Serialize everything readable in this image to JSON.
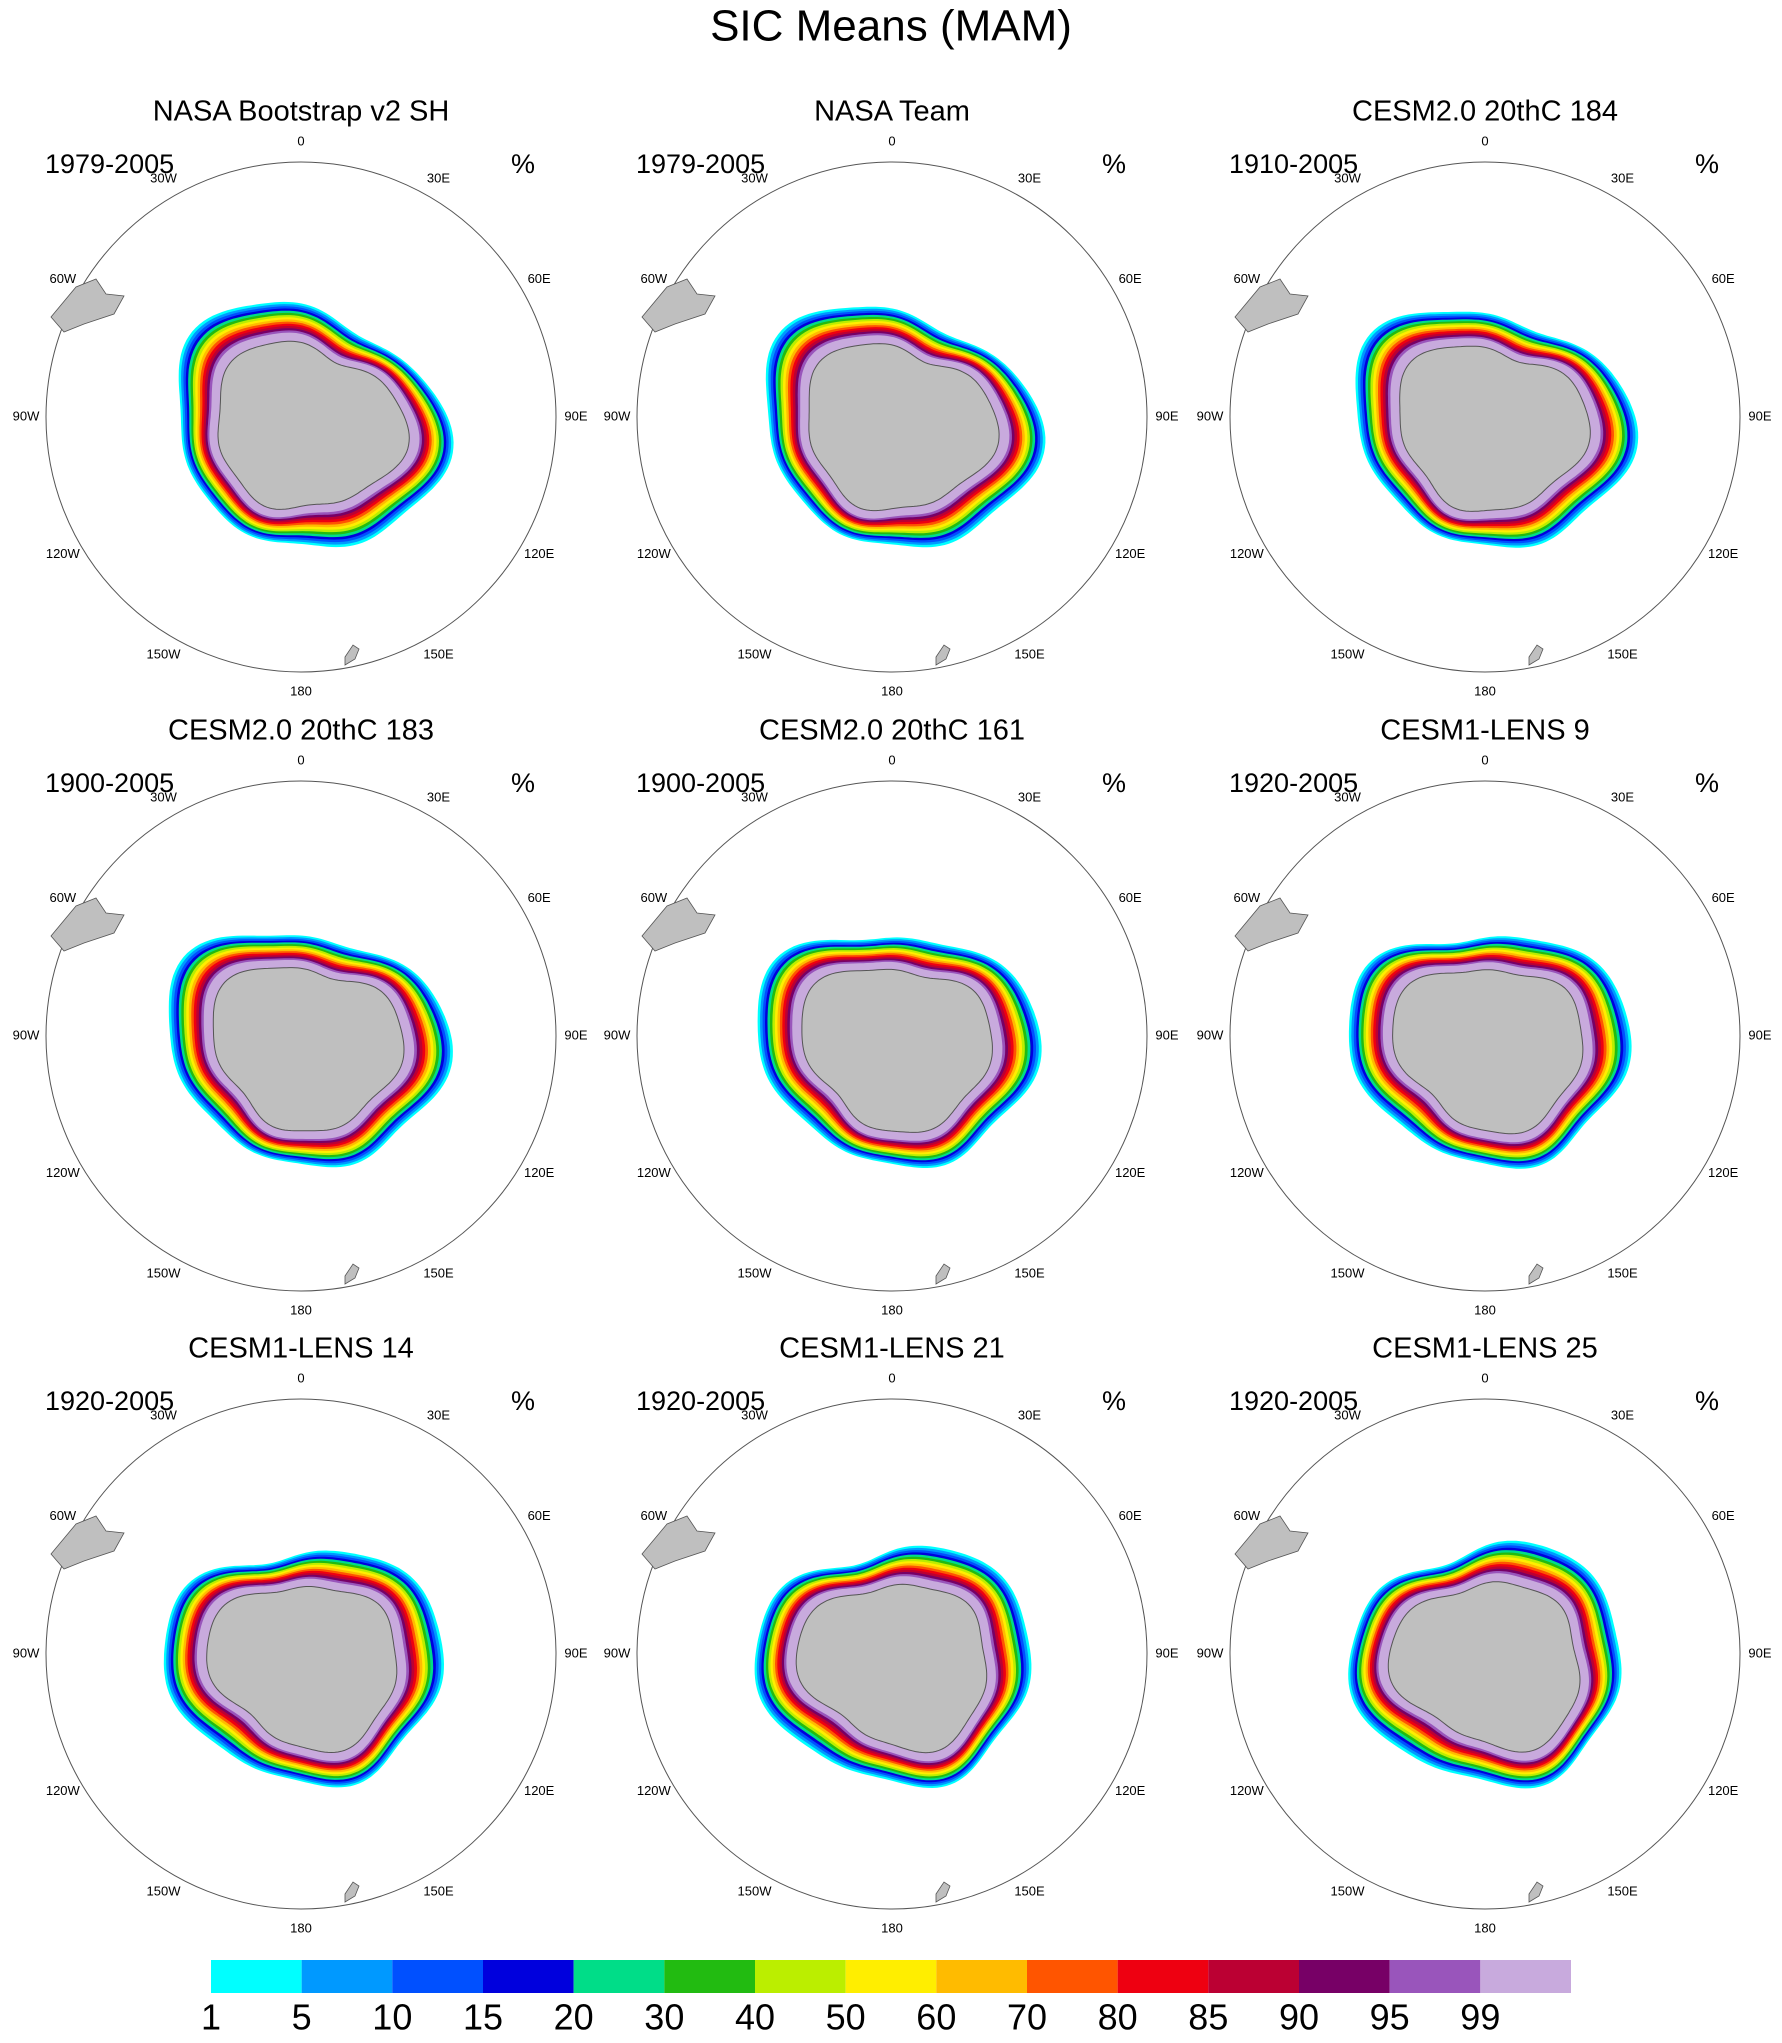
{
  "title": "SIC Means (MAM)",
  "panels": [
    {
      "title": "NASA Bootstrap v2 SH",
      "period": "1979-2005",
      "units": "%"
    },
    {
      "title": "NASA Team",
      "period": "1979-2005",
      "units": "%"
    },
    {
      "title": "CESM2.0 20thC 184",
      "period": "1910-2005",
      "units": "%"
    },
    {
      "title": "CESM2.0 20thC 183",
      "period": "1900-2005",
      "units": "%"
    },
    {
      "title": "CESM2.0 20thC 161",
      "period": "1900-2005",
      "units": "%"
    },
    {
      "title": "CESM1-LENS 9",
      "period": "1920-2005",
      "units": "%"
    },
    {
      "title": "CESM1-LENS 14",
      "period": "1920-2005",
      "units": "%"
    },
    {
      "title": "CESM1-LENS 21",
      "period": "1920-2005",
      "units": "%"
    },
    {
      "title": "CESM1-LENS 25",
      "period": "1920-2005",
      "units": "%"
    }
  ],
  "longitude_labels": [
    "0",
    "30E",
    "60E",
    "90E",
    "120E",
    "150E",
    "180",
    "150W",
    "120W",
    "90W",
    "60W",
    "30W"
  ],
  "colorbar": {
    "levels": [
      1,
      5,
      10,
      15,
      20,
      30,
      40,
      50,
      60,
      70,
      80,
      85,
      90,
      95,
      99
    ],
    "colors": [
      "#00ffff",
      "#0099ff",
      "#0050ff",
      "#0000dd",
      "#00dd88",
      "#22bb11",
      "#bbee00",
      "#ffee00",
      "#ffbb00",
      "#ff5500",
      "#ee0011",
      "#bb0033",
      "#770066",
      "#9955bb",
      "#c8aadd"
    ]
  }
}
